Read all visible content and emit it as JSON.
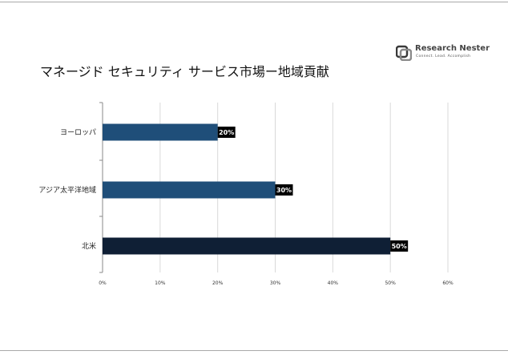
{
  "header": {
    "title": "マネージド セキュリティ サービス市場ー地域貢献",
    "logo_name": "Research Nester",
    "logo_tagline": "Connect. Lead. Accomplish"
  },
  "colors": {
    "bar_dark": "#0f1f35",
    "bar_blue": "#1f4e79",
    "label_bg": "#000000",
    "grid": "#d9d9d9",
    "axis": "#888888"
  },
  "chart_data": {
    "type": "bar",
    "orientation": "horizontal",
    "categories": [
      "ヨーロッパ",
      "アジア太平洋地域",
      "北米"
    ],
    "values": [
      20,
      30,
      50
    ],
    "data_labels": [
      "20%",
      "30%",
      "50%"
    ],
    "bar_colors": [
      "#1f4e79",
      "#1f4e79",
      "#0f1f35"
    ],
    "xlim": [
      0,
      60
    ],
    "xticks": [
      0,
      10,
      20,
      30,
      40,
      50,
      60
    ],
    "xtick_labels": [
      "0%",
      "10%",
      "20%",
      "30%",
      "40%",
      "50%",
      "60%"
    ],
    "grid": true,
    "legend": "none"
  }
}
